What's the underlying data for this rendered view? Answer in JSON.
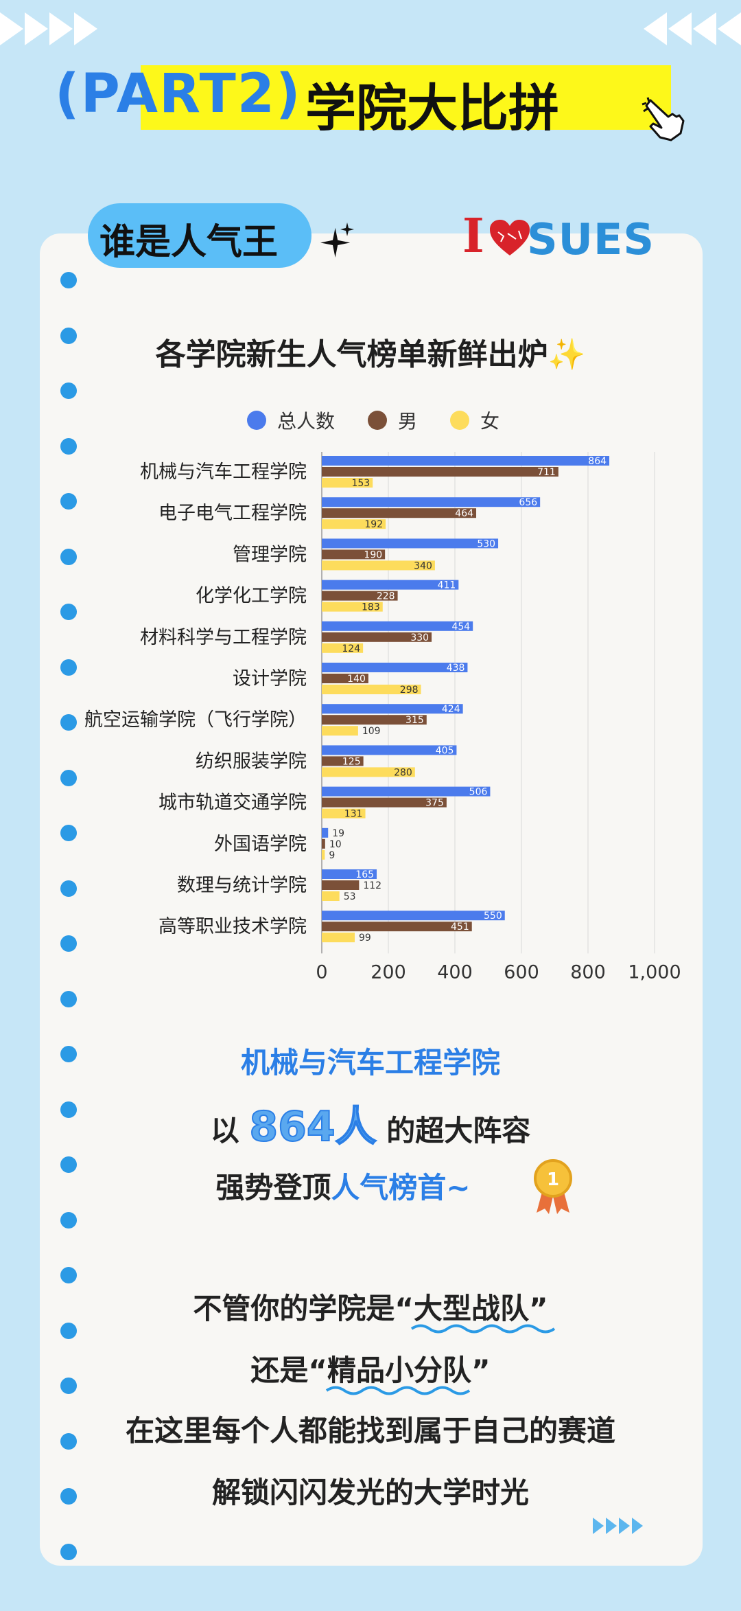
{
  "header": {
    "part_label": "(PART2)",
    "title": "学院大比拼"
  },
  "badge": {
    "text": "谁是人气王"
  },
  "logo": {
    "text": "I♥SUES",
    "brand": "SUES"
  },
  "chart_data": {
    "type": "bar",
    "orientation": "horizontal",
    "title": "各学院新生人气榜单新鲜出炉✨",
    "categories": [
      "机械与汽车工程学院",
      "电子电气工程学院",
      "管理学院",
      "化学化工学院",
      "材料科学与工程学院",
      "设计学院",
      "航空运输学院（飞行学院）",
      "纺织服装学院",
      "城市轨道交通学院",
      "外国语学院",
      "数理与统计学院",
      "高等职业技术学院"
    ],
    "series": [
      {
        "name": "总人数",
        "color": "#4b7bec",
        "values": [
          864,
          656,
          530,
          411,
          454,
          438,
          424,
          405,
          506,
          19,
          165,
          550
        ]
      },
      {
        "name": "男",
        "color": "#7b5038",
        "values": [
          711,
          464,
          190,
          228,
          330,
          140,
          315,
          125,
          375,
          10,
          112,
          451
        ]
      },
      {
        "name": "女",
        "color": "#fddc5c",
        "values": [
          153,
          192,
          340,
          183,
          124,
          298,
          109,
          280,
          131,
          9,
          53,
          99
        ]
      }
    ],
    "xlim": [
      0,
      1000
    ],
    "xticks": [
      "0",
      "200",
      "400",
      "600",
      "800",
      "1,000"
    ],
    "grid": true,
    "legend": "top"
  },
  "summary": {
    "line1": "机械与汽车工程学院",
    "line2_pre": "以 ",
    "line2_num": "864人",
    "line2_post": " 的超大阵容",
    "line3_pre": "强势登顶",
    "line3_blue": "人气榜首~"
  },
  "closing": {
    "l1_pre": "不管你的学院是",
    "l1_em": "“大型战队”",
    "l2_pre": "还是",
    "l2_em": "“精品小分队”",
    "l3": "在这里每个人都能找到属于自己的赛道",
    "l4": "解锁闪闪发光的大学时光"
  }
}
